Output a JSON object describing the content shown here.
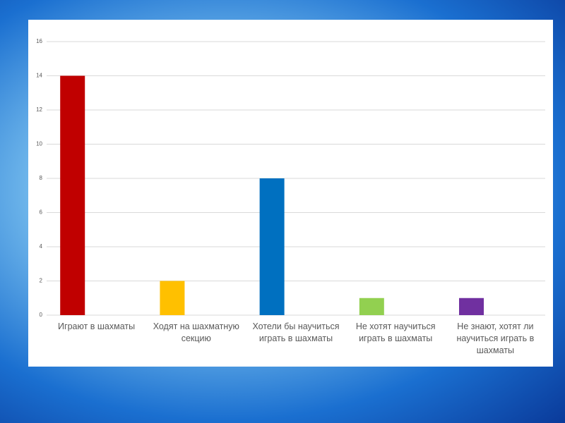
{
  "chart_data": {
    "type": "bar",
    "categories": [
      "Играют в шахматы",
      "Ходят на шахматную секцию",
      "Хотели бы научиться играть в шахматы",
      "Не хотят научиться играть в шахматы",
      "Не знают, хотят ли научиться играть в шахматы"
    ],
    "values": [
      14,
      2,
      8,
      1,
      1
    ],
    "colors": [
      "#c00000",
      "#ffc000",
      "#0070c0",
      "#92d050",
      "#7030a0"
    ],
    "ylim": [
      0,
      16
    ],
    "yticks": [
      0,
      2,
      4,
      6,
      8,
      10,
      12,
      14,
      16
    ],
    "grid": true
  }
}
